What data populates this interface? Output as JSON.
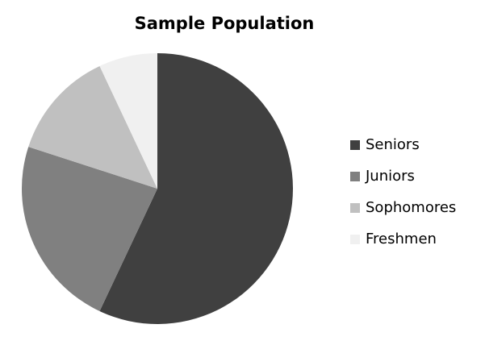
{
  "chart_data": {
    "type": "pie",
    "title": "Sample Population",
    "categories": [
      "Seniors",
      "Juniors",
      "Sophomores",
      "Freshmen"
    ],
    "values": [
      57,
      23,
      13,
      7
    ],
    "colors": [
      "#404040",
      "#808080",
      "#c0c0c0",
      "#f0f0f0"
    ],
    "legend": "right"
  }
}
